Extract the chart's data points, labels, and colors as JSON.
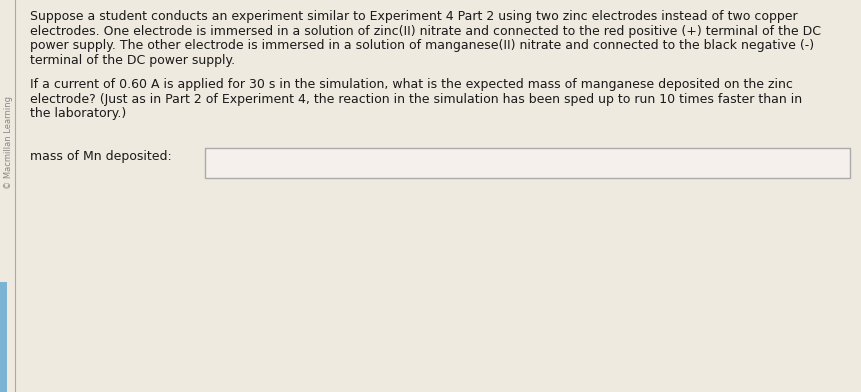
{
  "background_color": "#eeeae0",
  "left_bar_color": "#7ab3d4",
  "watermark_text": "© Macmillan Learning",
  "paragraph1_lines": [
    "Suppose a student conducts an experiment similar to Experiment 4 Part 2 using two zinc electrodes instead of two copper",
    "electrodes. One electrode is immersed in a solution of zinc(II) nitrate and connected to the red positive (+) terminal of the DC",
    "power supply. The other electrode is immersed in a solution of manganese(II) nitrate and connected to the black negative (-)",
    "terminal of the DC power supply."
  ],
  "paragraph2_lines": [
    "If a current of 0.60 A is applied for 30 s in the simulation, what is the expected mass of manganese deposited on the zinc",
    "electrode? (Just as in Part 2 of Experiment 4, the reaction in the simulation has been sped up to run 10 times faster than in",
    "the laboratory.)"
  ],
  "label_text": "mass of Mn deposited:",
  "text_color": "#1a1a1a",
  "box_fill_color": "#f5f0eb",
  "box_border_color": "#aaaaaa",
  "font_size": 9.0,
  "label_font_size": 9.0,
  "watermark_color": "#888888",
  "watermark_fontsize": 6.0
}
